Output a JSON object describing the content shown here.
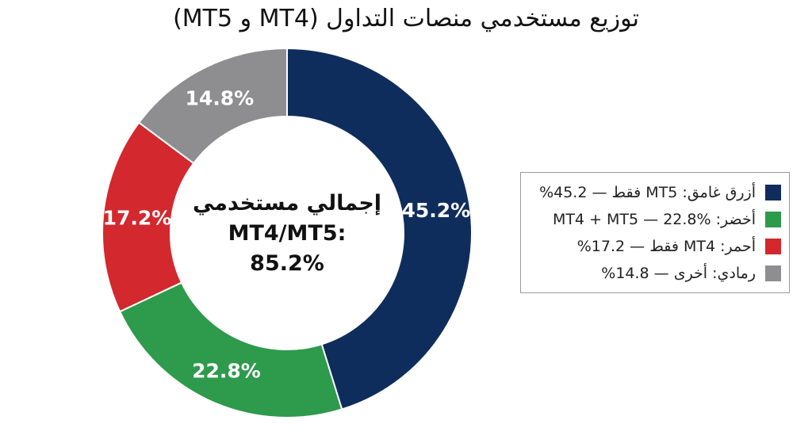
{
  "title": "توزيع مستخدمي منصات التداول (MT4 و MT5)",
  "center": {
    "line1": "إجمالي مستخدمي",
    "line2": "MT4/MT5:",
    "line3": "85.2%"
  },
  "legend": {
    "items": [
      {
        "text": "أزرق غامق: MT5 فقط — 45.2%",
        "color": "#0f2d5c"
      },
      {
        "text": "أخضر: MT4 + MT5 — 22.8%",
        "color": "#2e9a4c"
      },
      {
        "text": "أحمر: MT4 فقط — 17.2%",
        "color": "#d3282e"
      },
      {
        "text": "رمادي: أخرى — 14.8%",
        "color": "#8e8e90"
      }
    ]
  },
  "chart_data": {
    "type": "pie",
    "title": "توزيع مستخدمي منصات التداول (MT4 و MT5)",
    "donut": true,
    "start_angle_deg": 0,
    "direction": "clockwise",
    "slices": [
      {
        "label": "45.2%",
        "value": 45.2,
        "color": "#0f2d5c"
      },
      {
        "label": "22.8%",
        "value": 22.8,
        "color": "#2e9a4c"
      },
      {
        "label": "17.2%",
        "value": 17.2,
        "color": "#d3282e"
      },
      {
        "label": "14.8%",
        "value": 14.8,
        "color": "#8e8e90"
      }
    ],
    "legend_position": "right"
  }
}
